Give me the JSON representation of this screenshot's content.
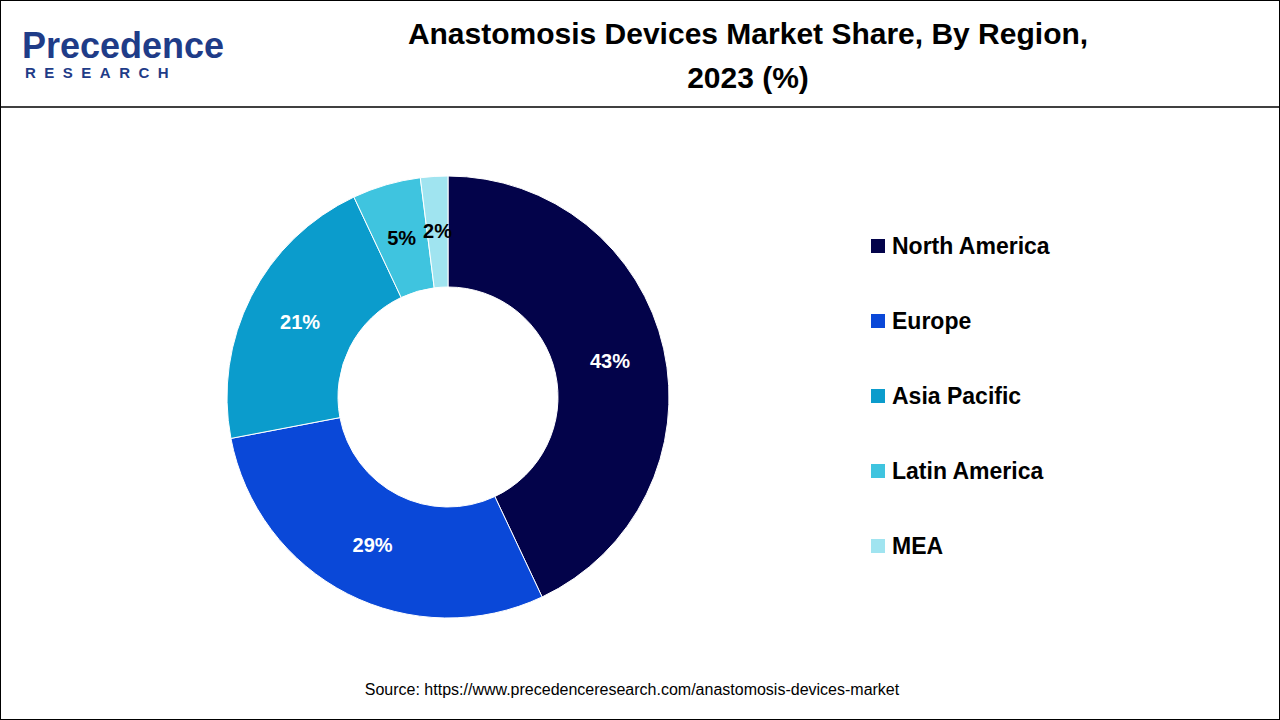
{
  "chart_data": {
    "type": "pie",
    "title": "Anastomosis Devices Market Share, By Region, 2023 (%)",
    "logo": {
      "name": "Precedence",
      "subtitle": "RESEARCH"
    },
    "source": "Source: https://www.precedenceresearch.com/anastomosis-devices-market",
    "categories": [
      "North America",
      "Europe",
      "Asia Pacific",
      "Latin America",
      "MEA"
    ],
    "values": [
      43,
      29,
      21,
      5,
      2
    ],
    "value_labels": [
      "43%",
      "29%",
      "21%",
      "5%",
      "2%"
    ],
    "colors": [
      "#03034a",
      "#0a48d8",
      "#0b9ccc",
      "#3fc4df",
      "#a0e4f0"
    ],
    "data_labels": true,
    "legend": "right"
  }
}
